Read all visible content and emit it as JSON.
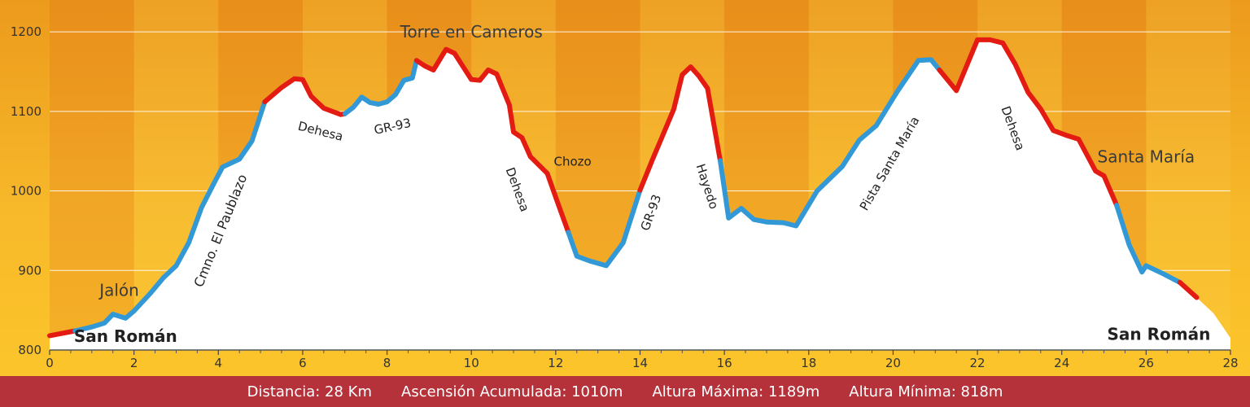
{
  "chart_data": {
    "type": "area",
    "xlim": [
      0,
      28
    ],
    "ylim": [
      800,
      1240
    ],
    "x_ticks": [
      0,
      2,
      4,
      6,
      8,
      10,
      12,
      14,
      16,
      18,
      20,
      22,
      24,
      26,
      28
    ],
    "y_ticks": [
      800,
      900,
      1000,
      1100,
      1200
    ],
    "grid": true,
    "series": [
      {
        "points": [
          [
            0,
            818
          ],
          [
            0.6,
            824
          ],
          [
            1.0,
            829
          ],
          [
            1.3,
            834
          ],
          [
            1.5,
            845
          ],
          [
            1.8,
            840
          ],
          [
            2.0,
            849
          ],
          [
            2.4,
            872
          ],
          [
            2.7,
            891
          ],
          [
            3.0,
            906
          ],
          [
            3.3,
            935
          ],
          [
            3.6,
            979
          ],
          [
            3.9,
            1010
          ],
          [
            4.1,
            1030
          ],
          [
            4.5,
            1040
          ],
          [
            4.8,
            1063
          ],
          [
            5.1,
            1112
          ],
          [
            5.5,
            1130
          ],
          [
            5.8,
            1141
          ],
          [
            6.0,
            1140
          ],
          [
            6.2,
            1119
          ],
          [
            6.5,
            1104
          ],
          [
            6.9,
            1096
          ],
          [
            7.0,
            1097
          ],
          [
            7.2,
            1105
          ],
          [
            7.4,
            1118
          ],
          [
            7.6,
            1111
          ],
          [
            7.8,
            1109
          ],
          [
            8.0,
            1112
          ],
          [
            8.2,
            1121
          ],
          [
            8.4,
            1139
          ],
          [
            8.6,
            1142
          ],
          [
            8.7,
            1164
          ],
          [
            8.9,
            1157
          ],
          [
            9.1,
            1152
          ],
          [
            9.4,
            1178
          ],
          [
            9.6,
            1173
          ],
          [
            10.0,
            1140
          ],
          [
            10.2,
            1139
          ],
          [
            10.4,
            1152
          ],
          [
            10.6,
            1147
          ],
          [
            10.9,
            1108
          ],
          [
            11.0,
            1074
          ],
          [
            11.2,
            1067
          ],
          [
            11.4,
            1043
          ],
          [
            11.8,
            1022
          ],
          [
            12.0,
            992
          ],
          [
            12.3,
            948
          ],
          [
            12.5,
            918
          ],
          [
            12.8,
            912
          ],
          [
            13.2,
            906
          ],
          [
            13.6,
            935
          ],
          [
            14.0,
            1001
          ],
          [
            14.3,
            1040
          ],
          [
            14.5,
            1065
          ],
          [
            14.8,
            1103
          ],
          [
            15.0,
            1146
          ],
          [
            15.2,
            1156
          ],
          [
            15.4,
            1144
          ],
          [
            15.6,
            1129
          ],
          [
            15.9,
            1038
          ],
          [
            16.1,
            966
          ],
          [
            16.4,
            978
          ],
          [
            16.7,
            964
          ],
          [
            17.0,
            961
          ],
          [
            17.4,
            960
          ],
          [
            17.7,
            956
          ],
          [
            18.2,
            1000
          ],
          [
            18.8,
            1031
          ],
          [
            19.2,
            1064
          ],
          [
            19.6,
            1082
          ],
          [
            20.1,
            1125
          ],
          [
            20.6,
            1164
          ],
          [
            20.9,
            1165
          ],
          [
            21.1,
            1152
          ],
          [
            21.5,
            1126
          ],
          [
            22.0,
            1190
          ],
          [
            22.3,
            1190
          ],
          [
            22.6,
            1186
          ],
          [
            22.9,
            1159
          ],
          [
            23.2,
            1124
          ],
          [
            23.5,
            1103
          ],
          [
            23.8,
            1076
          ],
          [
            24.1,
            1070
          ],
          [
            24.4,
            1065
          ],
          [
            24.8,
            1025
          ],
          [
            25.0,
            1019
          ],
          [
            25.3,
            982
          ],
          [
            25.6,
            932
          ],
          [
            25.9,
            898
          ],
          [
            26.0,
            906
          ],
          [
            26.4,
            896
          ],
          [
            26.8,
            885
          ],
          [
            27.2,
            866
          ],
          [
            27.6,
            846
          ],
          [
            28.0,
            815
          ]
        ],
        "segments": [
          {
            "color": "#e31b12",
            "from": 0,
            "to": 1
          },
          {
            "color": "#3399d6",
            "from": 1,
            "to": 16
          },
          {
            "color": "#e31b12",
            "from": 16,
            "to": 23
          },
          {
            "color": "#3399d6",
            "from": 23,
            "to": 32
          },
          {
            "color": "#e31b12",
            "from": 32,
            "to": 47
          },
          {
            "color": "#3399d6",
            "from": 47,
            "to": 52
          },
          {
            "color": "#e31b12",
            "from": 52,
            "to": 60
          },
          {
            "color": "#3399d6",
            "from": 60,
            "to": 74
          },
          {
            "color": "#e31b12",
            "from": 74,
            "to": 87
          },
          {
            "color": "#3399d6",
            "from": 87,
            "to": 92
          },
          {
            "color": "#e31b12",
            "from": 92,
            "to": 93
          }
        ]
      }
    ],
    "annotations": [
      {
        "text": "Torre en Cameros",
        "x": 10.0,
        "y": 1193,
        "size": 20,
        "weight": "normal",
        "rotate": 0,
        "anchor": "middle",
        "color": "#3a3a3a"
      },
      {
        "text": "Jalón",
        "x": 1.65,
        "y": 868,
        "size": 20,
        "weight": "normal",
        "rotate": 0,
        "anchor": "middle",
        "color": "#3a3a3a"
      },
      {
        "text": "San Román",
        "x": 1.8,
        "y": 810,
        "size": 20,
        "weight": "bold",
        "rotate": 0,
        "anchor": "middle",
        "color": "#222222"
      },
      {
        "text": "San Román",
        "x": 26.3,
        "y": 813,
        "size": 20,
        "weight": "bold",
        "rotate": 0,
        "anchor": "middle",
        "color": "#222222"
      },
      {
        "text": "Santa María",
        "x": 26.0,
        "y": 1036,
        "size": 20,
        "weight": "normal",
        "rotate": 0,
        "anchor": "middle",
        "color": "#3a3a3a"
      },
      {
        "text": "Cmno. El Paublazo",
        "x": 4.15,
        "y": 948,
        "size": 16,
        "weight": "normal",
        "rotate": -68,
        "anchor": "middle",
        "color": "#222222"
      },
      {
        "text": "Dehesa",
        "x": 6.4,
        "y": 1070,
        "size": 15,
        "weight": "normal",
        "rotate": 14,
        "anchor": "middle",
        "color": "#222222"
      },
      {
        "text": "GR-93",
        "x": 8.15,
        "y": 1076,
        "size": 15,
        "weight": "normal",
        "rotate": -12,
        "anchor": "middle",
        "color": "#222222"
      },
      {
        "text": "Chozo",
        "x": 12.4,
        "y": 1032,
        "size": 15,
        "weight": "normal",
        "rotate": 0,
        "anchor": "middle",
        "color": "#222222"
      },
      {
        "text": "Dehesa",
        "x": 11.0,
        "y": 1000,
        "size": 15,
        "weight": "normal",
        "rotate": 70,
        "anchor": "middle",
        "color": "#222222"
      },
      {
        "text": "GR-93",
        "x": 14.35,
        "y": 971,
        "size": 15,
        "weight": "normal",
        "rotate": -70,
        "anchor": "middle",
        "color": "#222222"
      },
      {
        "text": "Hayedo",
        "x": 15.5,
        "y": 1004,
        "size": 15,
        "weight": "normal",
        "rotate": 72,
        "anchor": "middle",
        "color": "#222222"
      },
      {
        "text": "Pista Santa María",
        "x": 20.0,
        "y": 1032,
        "size": 15,
        "weight": "normal",
        "rotate": -60,
        "anchor": "middle",
        "color": "#222222"
      },
      {
        "text": "Dehesa",
        "x": 22.75,
        "y": 1077,
        "size": 15,
        "weight": "normal",
        "rotate": 70,
        "anchor": "middle",
        "color": "#222222"
      }
    ]
  },
  "footer": {
    "distance": "Distancia: 28 Km",
    "ascent": "Ascensión Acumulada: 1010m",
    "max_alt": "Altura Máxima: 1189m",
    "min_alt": "Altura Mínima: 818m"
  }
}
